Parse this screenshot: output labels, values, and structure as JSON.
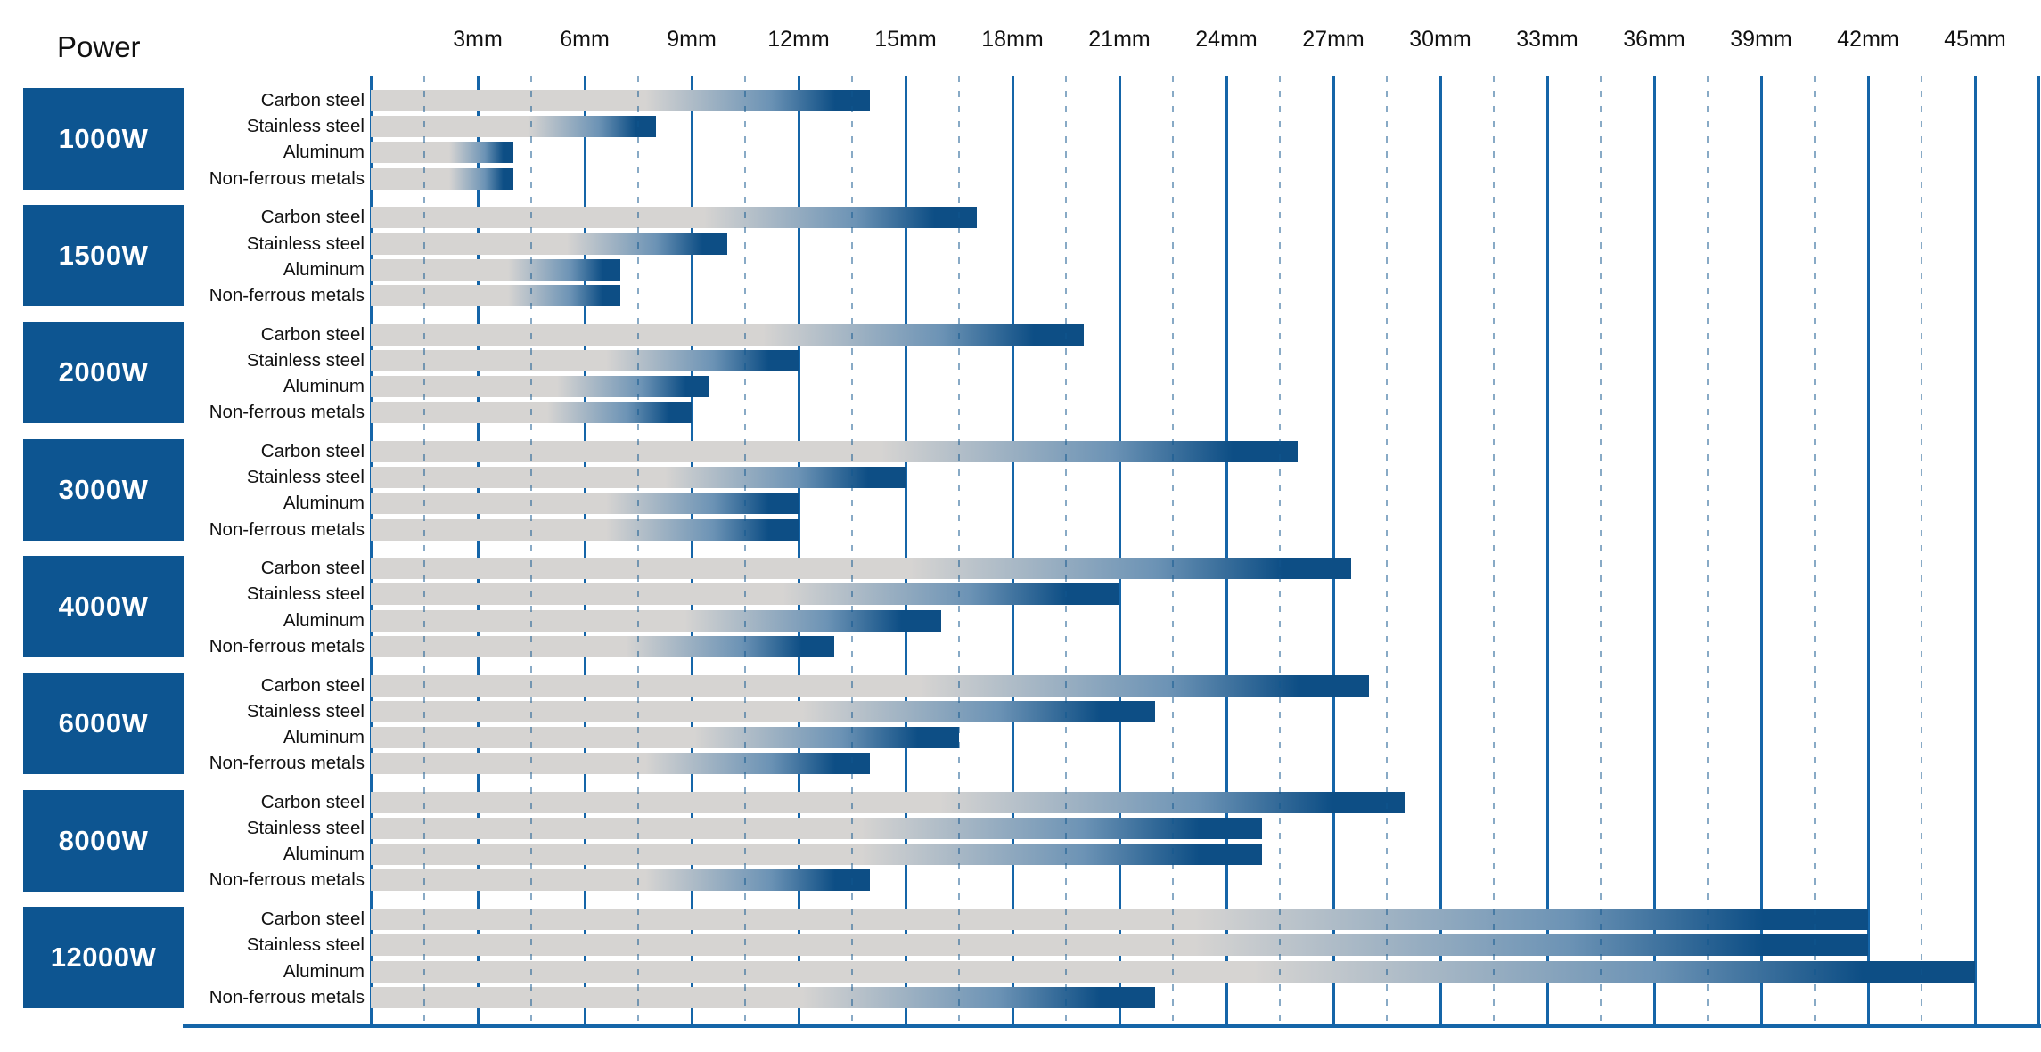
{
  "page": {
    "power_axis_title": "Power"
  },
  "colors": {
    "background": "#ffffff",
    "text_black": "#111111",
    "power_badge_blue": "#0d5591",
    "grid_line_blue": "#1565a8",
    "grid_dash_blue": "#10568e",
    "bar_gray": "#d6d4d2",
    "bar_mid_blue": "#6c93b5",
    "bar_tip_blue": "#0d4e85"
  },
  "chart_data": {
    "type": "bar",
    "orientation": "horizontal",
    "unit": "mm",
    "grid": true,
    "legend": "none",
    "x_tick_labels": [
      "3mm",
      "6mm",
      "9mm",
      "12mm",
      "15mm",
      "18mm",
      "21mm",
      "24mm",
      "27mm",
      "30mm",
      "33mm",
      "36mm",
      "39mm",
      "42mm",
      "45mm"
    ],
    "x_ticks_mm": [
      3,
      6,
      9,
      12,
      15,
      18,
      21,
      24,
      27,
      30,
      33,
      36,
      39,
      42,
      45
    ],
    "xlim_mm": [
      0,
      46.8
    ],
    "materials": [
      "Carbon steel",
      "Stainless steel",
      "Aluminum",
      "Non-ferrous metals"
    ],
    "series": [
      {
        "power": "1000W",
        "values_mm": [
          14,
          8,
          4,
          4
        ]
      },
      {
        "power": "1500W",
        "values_mm": [
          17,
          10,
          7,
          7
        ]
      },
      {
        "power": "2000W",
        "values_mm": [
          20,
          12,
          9.5,
          9
        ]
      },
      {
        "power": "3000W",
        "values_mm": [
          26,
          15,
          12,
          12
        ]
      },
      {
        "power": "4000W",
        "values_mm": [
          27.5,
          21,
          16,
          13
        ]
      },
      {
        "power": "6000W",
        "values_mm": [
          28,
          22,
          16.5,
          14
        ]
      },
      {
        "power": "8000W",
        "values_mm": [
          29,
          25,
          25,
          14
        ]
      },
      {
        "power": "12000W",
        "values_mm": [
          42,
          42,
          45,
          22
        ]
      }
    ]
  }
}
